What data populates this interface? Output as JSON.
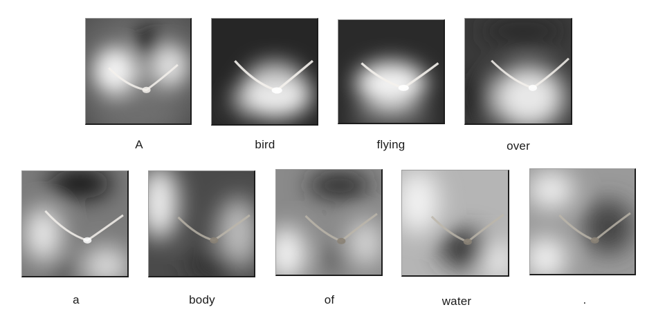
{
  "words": [
    "A",
    "bird",
    "flying",
    "over",
    "a",
    "body",
    "of",
    "water",
    "."
  ],
  "colors": {
    "background": "#ffffff",
    "text": "#1a1a1a",
    "heatmap_light": "#f0f0f0",
    "heatmap_dark": "#1f1f1f",
    "bird_stroke": "#f4f1ec"
  },
  "icons": [
    "attention-map-bird-image"
  ]
}
